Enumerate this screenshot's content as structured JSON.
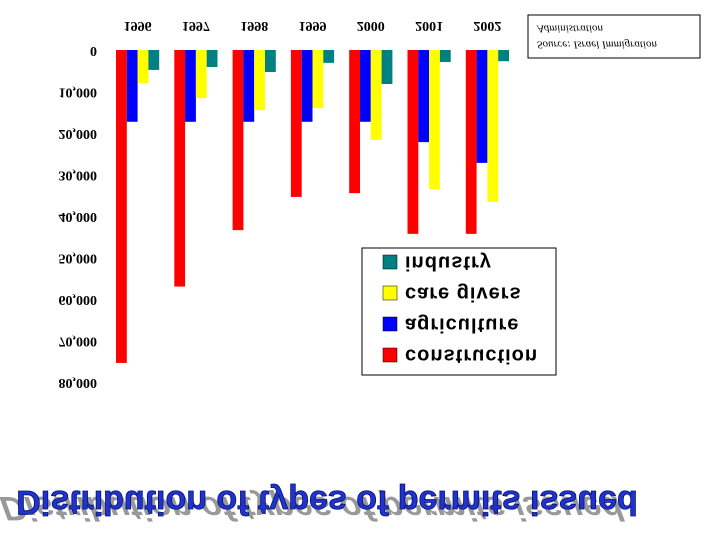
{
  "chart_data": {
    "type": "bar",
    "title": "Distribution of types of permits issued",
    "source": [
      "Source: Israel Immigration",
      "Administration"
    ],
    "categories": [
      "1996",
      "1997",
      "1998",
      "1999",
      "2000",
      "2001",
      "2002"
    ],
    "series": [
      {
        "name": "construction",
        "color": "#ff0000",
        "values": [
          75400,
          57000,
          43400,
          35400,
          34500,
          44300,
          44300
        ]
      },
      {
        "name": "agriculture",
        "color": "#0000ff",
        "values": [
          17300,
          17300,
          17300,
          17300,
          17300,
          22200,
          27200
        ]
      },
      {
        "name": "care givers",
        "color": "#ffff00",
        "values": [
          8000,
          11600,
          14500,
          14000,
          21700,
          33500,
          36600
        ]
      },
      {
        "name": "industry",
        "color": "#008080",
        "values": [
          4800,
          4100,
          5300,
          3100,
          8200,
          2900,
          2700
        ]
      }
    ],
    "ylim": [
      0,
      80000
    ],
    "yticks": [
      0,
      {
        "value": 10000,
        "label": "10,000"
      },
      {
        "value": 20000,
        "label": "20,000"
      },
      {
        "value": 30000,
        "label": "30,000"
      },
      {
        "value": 40000,
        "label": "40,000"
      },
      {
        "value": 50000,
        "label": "50,000"
      },
      {
        "value": 60000,
        "label": "60,000"
      },
      {
        "value": 70000,
        "label": "70,000"
      },
      {
        "value": 80000,
        "label": "80,000"
      }
    ],
    "grid": false,
    "legend": "right",
    "flipped": true
  }
}
